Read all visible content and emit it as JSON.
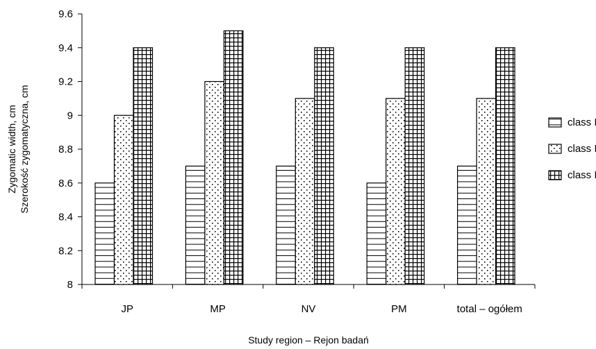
{
  "chart_data": {
    "type": "bar",
    "categories": [
      "JP",
      "MP",
      "NV",
      "PM",
      "total – ogółem"
    ],
    "series": [
      {
        "name": "class I",
        "values": [
          8.6,
          8.7,
          8.7,
          8.6,
          8.7
        ],
        "pattern": "horizontal-lines"
      },
      {
        "name": "class II",
        "values": [
          9.0,
          9.2,
          9.1,
          9.1,
          9.1
        ],
        "pattern": "dots"
      },
      {
        "name": "class III",
        "values": [
          9.4,
          9.5,
          9.4,
          9.4,
          9.4
        ],
        "pattern": "grid"
      }
    ],
    "title": "",
    "xlabel": "Study region – Rejon badań",
    "ylabel_lines": [
      "Zygomatic width, cm",
      "Szerokość zygomatyczna, cm"
    ],
    "ylim": [
      8,
      9.6
    ],
    "yticks": [
      "8",
      "8.2",
      "8.4",
      "8.6",
      "8.8",
      "9",
      "9.2",
      "9.4",
      "9.6"
    ],
    "grid": false,
    "legend_position": "right"
  }
}
